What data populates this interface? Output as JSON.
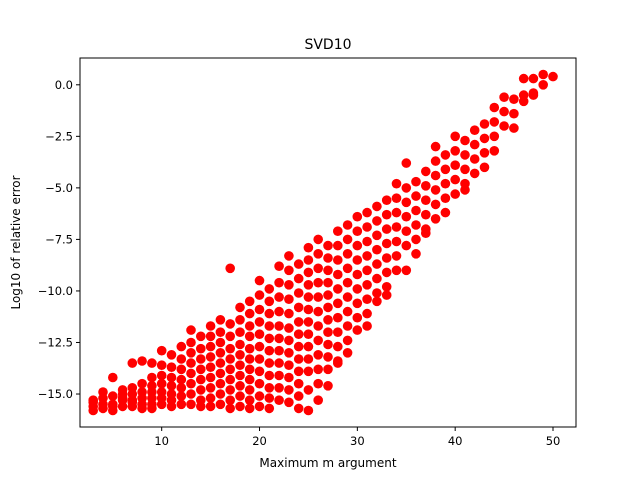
{
  "chart_data": {
    "type": "scatter",
    "title": "SVD10",
    "xlabel": "Maximum m argument",
    "ylabel": "Log10 of relative error",
    "xlim": [
      1.65,
      52.35
    ],
    "ylim": [
      -16.6,
      1.3
    ],
    "xticks": [
      10,
      20,
      30,
      40,
      50
    ],
    "xtick_labels": [
      "10",
      "20",
      "30",
      "40",
      "50"
    ],
    "yticks": [
      0,
      -2.5,
      -5,
      -7.5,
      -10,
      -12.5,
      -15
    ],
    "ytick_labels": [
      "0.0",
      "−2.5",
      "−5.0",
      "−7.5",
      "−10.0",
      "−12.5",
      "−15.0"
    ],
    "grid": false,
    "legend": "none",
    "marker": "circle",
    "color": "#ff0000",
    "series": [
      {
        "x": [
          3,
          3,
          3,
          3,
          4,
          4,
          4,
          4,
          5,
          5,
          5,
          5,
          5,
          6,
          6,
          6,
          6,
          6,
          7,
          7,
          7,
          7,
          7,
          7,
          8,
          8,
          8,
          8,
          8,
          8,
          9,
          9,
          9,
          9,
          9,
          9,
          9,
          10,
          10,
          10,
          10,
          10,
          10,
          10,
          11,
          11,
          11,
          11,
          11,
          11,
          11,
          12,
          12,
          12,
          12,
          12,
          12,
          12,
          13,
          13,
          13,
          13,
          13,
          13,
          13,
          13,
          14,
          14,
          14,
          14,
          14,
          14,
          14,
          14,
          15,
          15,
          15,
          15,
          15,
          15,
          15,
          15,
          15,
          16,
          16,
          16,
          16,
          16,
          16,
          16,
          16,
          16,
          17,
          17,
          17,
          17,
          17,
          17,
          17,
          17,
          17,
          17,
          18,
          18,
          18,
          18,
          18,
          18,
          18,
          18,
          18,
          18,
          19,
          19,
          19,
          19,
          19,
          19,
          19,
          19,
          19,
          19,
          19,
          20,
          20,
          20,
          20,
          20,
          20,
          20,
          20,
          20,
          20,
          20,
          21,
          21,
          21,
          21,
          21,
          21,
          21,
          21,
          21,
          21,
          21,
          22,
          22,
          22,
          22,
          22,
          22,
          22,
          22,
          22,
          22,
          22,
          23,
          23,
          23,
          23,
          23,
          23,
          23,
          23,
          23,
          23,
          23,
          23,
          24,
          24,
          24,
          24,
          24,
          24,
          24,
          24,
          24,
          24,
          24,
          24,
          25,
          25,
          25,
          25,
          25,
          25,
          25,
          25,
          25,
          25,
          25,
          25,
          25,
          26,
          26,
          26,
          26,
          26,
          26,
          26,
          26,
          26,
          26,
          26,
          26,
          27,
          27,
          27,
          27,
          27,
          27,
          27,
          27,
          27,
          27,
          27,
          27,
          28,
          28,
          28,
          28,
          28,
          28,
          28,
          28,
          28,
          28,
          28,
          29,
          29,
          29,
          29,
          29,
          29,
          29,
          29,
          29,
          29,
          30,
          30,
          30,
          30,
          30,
          30,
          30,
          30,
          30,
          31,
          31,
          31,
          31,
          31,
          31,
          31,
          31,
          31,
          32,
          32,
          32,
          32,
          32,
          32,
          32,
          32,
          33,
          33,
          33,
          33,
          33,
          33,
          33,
          33,
          34,
          34,
          34,
          34,
          34,
          34,
          34,
          35,
          35,
          35,
          35,
          35,
          35,
          35,
          36,
          36,
          36,
          36,
          36,
          36,
          37,
          37,
          37,
          37,
          37,
          37,
          38,
          38,
          38,
          38,
          38,
          38,
          39,
          39,
          39,
          39,
          39,
          40,
          40,
          40,
          40,
          40,
          41,
          41,
          41,
          41,
          41,
          42,
          42,
          42,
          42,
          43,
          43,
          43,
          43,
          44,
          44,
          44,
          44,
          45,
          45,
          45,
          46,
          46,
          46,
          47,
          47,
          47,
          48,
          48,
          48,
          49,
          49,
          50
        ],
        "y": [
          -15.4,
          -15.6,
          -15.8,
          -15.3,
          -14.9,
          -15.2,
          -15.5,
          -15.7,
          -14.2,
          -15.1,
          -15.5,
          -15.8,
          -15.6,
          -14.8,
          -15.0,
          -15.3,
          -15.6,
          -15.2,
          -13.5,
          -14.7,
          -15.0,
          -15.3,
          -15.6,
          -15.4,
          -13.4,
          -14.5,
          -14.9,
          -15.2,
          -15.5,
          -15.7,
          -13.5,
          -14.2,
          -14.6,
          -14.9,
          -15.2,
          -15.5,
          -15.7,
          -12.9,
          -13.6,
          -14.1,
          -14.5,
          -14.9,
          -15.2,
          -15.5,
          -13.1,
          -13.7,
          -14.2,
          -14.6,
          -15.0,
          -15.3,
          -15.6,
          -12.7,
          -13.3,
          -13.8,
          -14.3,
          -14.7,
          -15.1,
          -15.5,
          -11.9,
          -12.5,
          -13.0,
          -13.5,
          -14.0,
          -14.5,
          -15.0,
          -15.5,
          -12.2,
          -12.8,
          -13.3,
          -13.8,
          -14.3,
          -14.8,
          -15.3,
          -15.6,
          -11.7,
          -12.2,
          -12.7,
          -13.2,
          -13.7,
          -14.2,
          -14.7,
          -15.2,
          -15.6,
          -11.4,
          -12.0,
          -12.5,
          -13.0,
          -13.5,
          -14.0,
          -14.5,
          -15.0,
          -15.5,
          -8.9,
          -11.6,
          -12.2,
          -12.8,
          -13.3,
          -13.8,
          -14.3,
          -14.8,
          -15.3,
          -15.7,
          -10.8,
          -11.4,
          -12.0,
          -12.6,
          -13.1,
          -13.6,
          -14.1,
          -14.6,
          -15.1,
          -15.6,
          -10.5,
          -11.1,
          -11.7,
          -12.2,
          -12.8,
          -13.3,
          -13.8,
          -14.3,
          -14.8,
          -15.3,
          -15.7,
          -9.5,
          -10.2,
          -10.9,
          -11.5,
          -12.1,
          -12.7,
          -13.3,
          -13.9,
          -14.5,
          -15.1,
          -15.6,
          -9.9,
          -10.5,
          -11.1,
          -11.7,
          -12.3,
          -12.9,
          -13.5,
          -14.1,
          -14.7,
          -15.2,
          -15.7,
          -8.8,
          -9.6,
          -10.3,
          -11.0,
          -11.7,
          -12.3,
          -12.9,
          -13.5,
          -14.1,
          -14.7,
          -15.3,
          -8.3,
          -9.0,
          -9.7,
          -10.4,
          -11.1,
          -11.8,
          -12.4,
          -13.0,
          -13.6,
          -14.2,
          -14.8,
          -15.4,
          -8.7,
          -9.4,
          -10.1,
          -10.8,
          -11.5,
          -12.1,
          -12.7,
          -13.3,
          -13.9,
          -14.5,
          -15.1,
          -15.7,
          -7.9,
          -8.5,
          -9.1,
          -9.7,
          -10.3,
          -10.9,
          -11.5,
          -12.1,
          -12.7,
          -13.3,
          -13.9,
          -14.8,
          -15.8,
          -7.5,
          -8.2,
          -8.9,
          -9.6,
          -10.3,
          -11.0,
          -11.7,
          -12.4,
          -13.1,
          -13.8,
          -14.5,
          -15.3,
          -7.8,
          -8.4,
          -9.0,
          -9.6,
          -10.2,
          -10.8,
          -11.4,
          -12.0,
          -12.6,
          -13.2,
          -13.8,
          -14.6,
          -7.1,
          -7.8,
          -8.5,
          -9.2,
          -9.9,
          -10.6,
          -11.3,
          -12.0,
          -12.7,
          -13.4,
          -13.5,
          -6.8,
          -7.5,
          -8.2,
          -8.9,
          -9.6,
          -10.3,
          -11.0,
          -11.7,
          -12.4,
          -13.0,
          -6.4,
          -7.1,
          -7.8,
          -8.5,
          -9.2,
          -9.9,
          -10.6,
          -11.3,
          -11.9,
          -6.2,
          -6.9,
          -7.6,
          -8.3,
          -9.0,
          -9.7,
          -10.4,
          -11.1,
          -11.7,
          -5.9,
          -6.6,
          -7.3,
          -8.0,
          -8.7,
          -9.4,
          -10.1,
          -10.5,
          -5.6,
          -6.3,
          -7.0,
          -7.7,
          -8.4,
          -9.1,
          -9.8,
          -10.2,
          -4.8,
          -5.5,
          -6.2,
          -6.9,
          -7.6,
          -8.3,
          -9.0,
          -3.8,
          -5.0,
          -5.7,
          -6.4,
          -7.1,
          -7.8,
          -9.0,
          -4.7,
          -5.4,
          -6.1,
          -6.8,
          -7.5,
          -8.2,
          -4.2,
          -4.9,
          -5.6,
          -6.3,
          -7.0,
          -7.2,
          -3.0,
          -3.7,
          -4.4,
          -5.1,
          -5.8,
          -6.5,
          -3.4,
          -4.1,
          -4.8,
          -5.5,
          -6.2,
          -2.5,
          -3.2,
          -3.9,
          -4.6,
          -5.3,
          -2.7,
          -3.4,
          -4.1,
          -4.8,
          -5.1,
          -2.2,
          -2.9,
          -3.6,
          -4.3,
          -1.9,
          -2.6,
          -3.3,
          -4.0,
          -1.1,
          -1.8,
          -2.5,
          -3.2,
          -0.6,
          -1.3,
          -2.0,
          -0.7,
          -1.4,
          -2.1,
          0.3,
          -0.5,
          -0.8,
          0.3,
          -0.4,
          -0.5,
          0.5,
          0.0,
          0.4
        ]
      }
    ]
  }
}
